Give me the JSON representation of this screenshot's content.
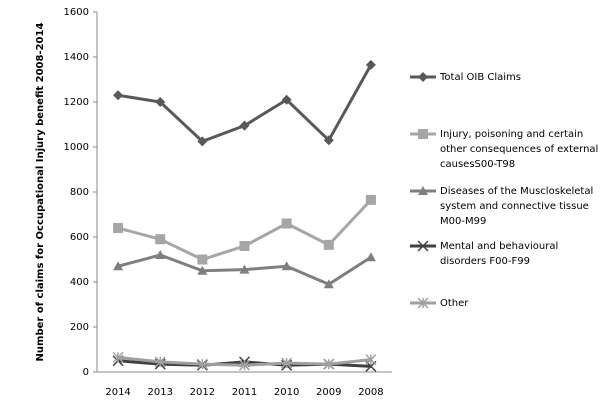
{
  "chart_data": {
    "type": "line",
    "y_label": "Number of claims for Occupational Injury benefit 2008-2014",
    "categories": [
      "2014",
      "2013",
      "2012",
      "2011",
      "2010",
      "2009",
      "2008"
    ],
    "ylim": [
      0,
      1600
    ],
    "yticks": [
      0,
      200,
      400,
      600,
      800,
      1000,
      1200,
      1400,
      1600
    ],
    "series": [
      {
        "name": "Total OIB Claims",
        "color": "#595959",
        "marker": "diamond",
        "values": [
          1230,
          1200,
          1025,
          1095,
          1210,
          1030,
          1365
        ]
      },
      {
        "name": "Injury, poisoning and certain other consequences of external causesS00-T98",
        "color": "#a6a6a6",
        "marker": "square",
        "values": [
          640,
          590,
          500,
          560,
          660,
          565,
          765
        ]
      },
      {
        "name": "Diseases of the Muscloskeletal system and connective tissue M00-M99",
        "color": "#7f7f7f",
        "marker": "triangle",
        "values": [
          470,
          520,
          450,
          455,
          470,
          390,
          510
        ]
      },
      {
        "name": "Mental and behavioural disorders F00-F99",
        "color": "#404040",
        "marker": "x",
        "values": [
          50,
          35,
          30,
          45,
          30,
          35,
          25
        ]
      },
      {
        "name": "Other",
        "color": "#a0a0a0",
        "marker": "asterisk",
        "values": [
          65,
          45,
          35,
          30,
          40,
          35,
          55
        ]
      }
    ]
  }
}
